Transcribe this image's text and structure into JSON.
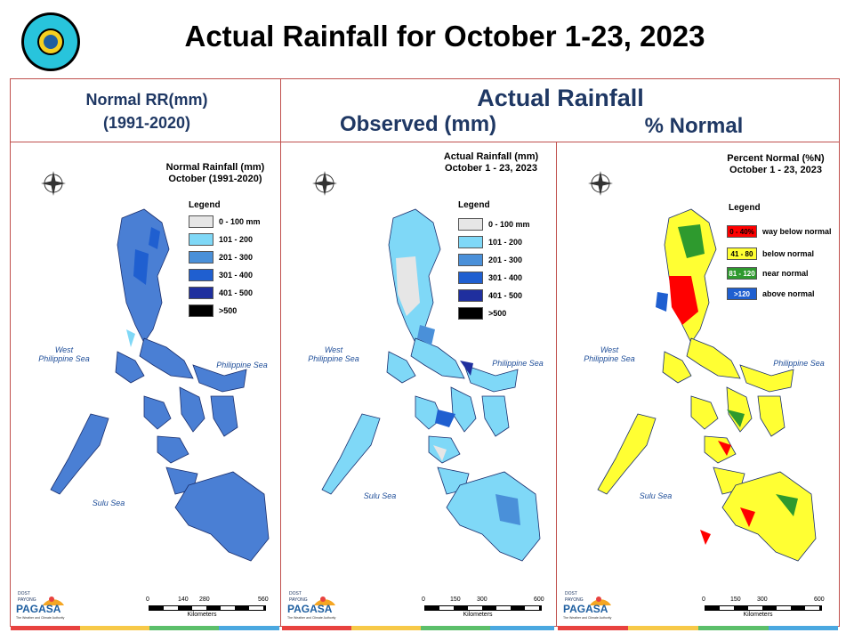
{
  "slide": {
    "title": "Actual Rainfall for October 1-23, 2023"
  },
  "headers": {
    "normal_line1": "Normal RR(mm)",
    "normal_line2": "(1991-2020)",
    "actual": "Actual Rainfall",
    "observed": "Observed (mm)",
    "percent": "% Normal"
  },
  "panels": [
    {
      "title_line1": "Normal Rainfall (mm)",
      "title_line2": "October (1991-2020)",
      "legend_title": "Legend",
      "legend": [
        {
          "label": "0 - 100 mm",
          "color": "#e6e6e6"
        },
        {
          "label": "101 - 200",
          "color": "#7fd8f7"
        },
        {
          "label": "201 - 300",
          "color": "#4a90d9"
        },
        {
          "label": "301 - 400",
          "color": "#1f5fd0"
        },
        {
          "label": "401 - 500",
          "color": "#1f2f9e"
        },
        {
          "label": ">500",
          "color": "#000000"
        }
      ],
      "seas": [
        "West",
        "Philippine Sea",
        "Philippine Sea",
        "Sulu Sea"
      ],
      "scale": {
        "ticks": [
          "0",
          "140",
          "280",
          "560"
        ],
        "unit": "Kilometers"
      }
    },
    {
      "title_line1": "Actual Rainfall (mm)",
      "title_line2": "October 1 - 23, 2023",
      "legend_title": "Legend",
      "legend": [
        {
          "label": "0 - 100 mm",
          "color": "#e6e6e6"
        },
        {
          "label": "101 - 200",
          "color": "#7fd8f7"
        },
        {
          "label": "201 - 300",
          "color": "#4a90d9"
        },
        {
          "label": "301 - 400",
          "color": "#1f5fd0"
        },
        {
          "label": "401 - 500",
          "color": "#1f2f9e"
        },
        {
          "label": ">500",
          "color": "#000000"
        }
      ],
      "seas": [
        "West",
        "Philippine Sea",
        "Philippine Sea",
        "Sulu Sea"
      ],
      "scale": {
        "ticks": [
          "0",
          "150",
          "300",
          "600"
        ],
        "unit": "Kilometers"
      }
    },
    {
      "title_line1": "Percent Normal (%N)",
      "title_line2": "October 1 - 23, 2023",
      "legend_title": "Legend",
      "legend": [
        {
          "swatch": "0 - 40%",
          "label": "way below normal",
          "color": "#ff0000"
        },
        {
          "swatch": "41 - 80",
          "label": "below normal",
          "color": "#ffff33"
        },
        {
          "swatch": "81 - 120",
          "label": "near normal",
          "color": "#2e9a2e"
        },
        {
          "swatch": ">120",
          "label": "above normal",
          "color": "#1f5fd0"
        }
      ],
      "seas": [
        "West",
        "Philippine Sea",
        "Philippine Sea",
        "Sulu Sea"
      ],
      "scale": {
        "ticks": [
          "0",
          "150",
          "300",
          "600"
        ],
        "unit": "Kilometers"
      }
    }
  ],
  "agency": {
    "line1": "DOST",
    "line2": "PAYONG",
    "name": "PAGASA",
    "tagline": "The Weather and Climate Authority"
  },
  "colors": {
    "frame": "#c0504d",
    "header_text": "#1f3864",
    "bar": [
      "#e8423f",
      "#f7c948",
      "#5cbf6a",
      "#4aa8e0"
    ]
  }
}
